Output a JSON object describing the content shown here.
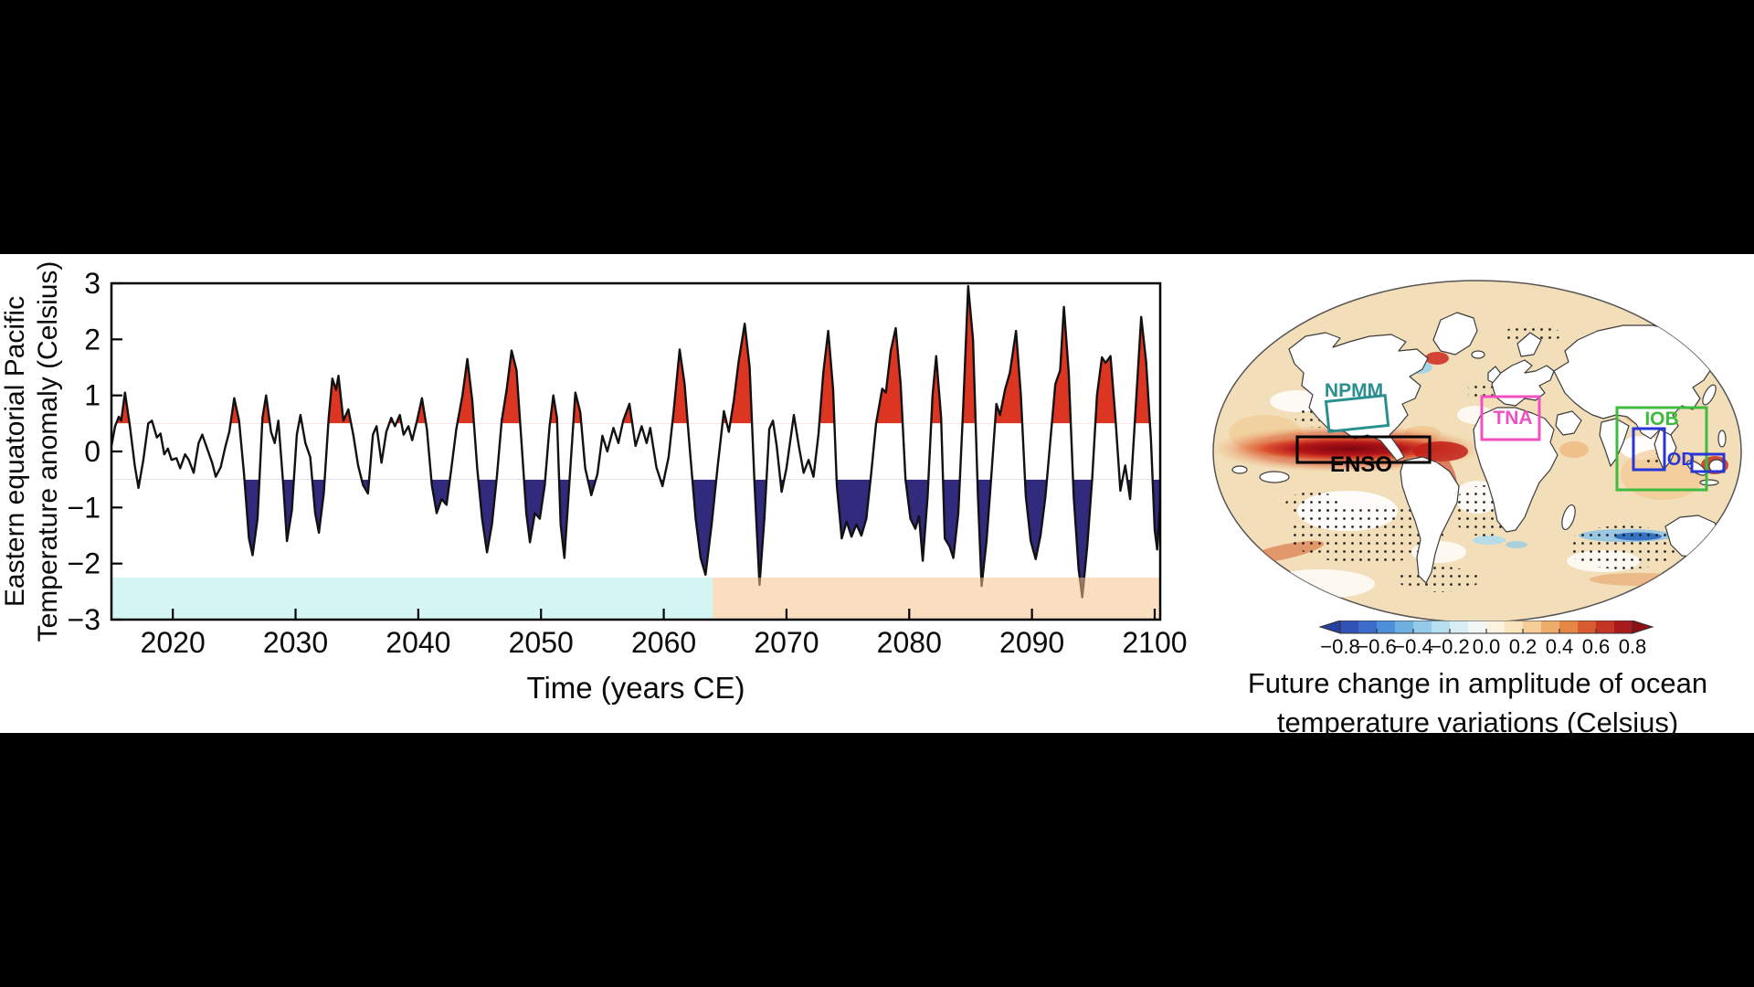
{
  "figure": {
    "background_color": "#000000",
    "panel_background": "#ffffff"
  },
  "chart_data": [
    {
      "type": "line",
      "title": "",
      "xlabel": "Time (years CE)",
      "ylabel_line1": "Eastern equatorial Pacific",
      "ylabel_line2": "Temperature anomaly (Celsius)",
      "xlim": [
        2015,
        2100.45
      ],
      "ylim": [
        -3,
        3
      ],
      "x_ticks": [
        2020,
        2030,
        2040,
        2050,
        2060,
        2070,
        2080,
        2090,
        2100
      ],
      "y_ticks": [
        3,
        2,
        1,
        0,
        -1,
        -2,
        -3
      ],
      "grid": false,
      "line_color": "#111111",
      "warm_threshold": 0.5,
      "cold_threshold": -0.5,
      "warm_fill": "#dc3522",
      "cold_fill": "#312a7d",
      "shading": [
        {
          "from": 2015,
          "to": 2064,
          "top": -2.25,
          "bottom": -3,
          "color": "#aeeeed"
        },
        {
          "from": 2064,
          "to": 2100.45,
          "top": -2.25,
          "bottom": -3,
          "color": "#f6c28c"
        }
      ],
      "series": [
        {
          "name": "Eastern equatorial Pacific temperature anomaly",
          "points": [
            [
              2015.0,
              0.1
            ],
            [
              2015.3,
              0.45
            ],
            [
              2015.6,
              0.62
            ],
            [
              2015.8,
              0.55
            ],
            [
              2016.1,
              1.05
            ],
            [
              2016.5,
              0.45
            ],
            [
              2016.9,
              -0.25
            ],
            [
              2017.2,
              -0.65
            ],
            [
              2017.6,
              -0.15
            ],
            [
              2018.0,
              0.5
            ],
            [
              2018.3,
              0.55
            ],
            [
              2018.7,
              0.25
            ],
            [
              2019.0,
              0.32
            ],
            [
              2019.3,
              -0.05
            ],
            [
              2019.6,
              0.05
            ],
            [
              2019.9,
              -0.15
            ],
            [
              2020.3,
              -0.12
            ],
            [
              2020.6,
              -0.3
            ],
            [
              2021.0,
              -0.05
            ],
            [
              2021.3,
              -0.15
            ],
            [
              2021.7,
              -0.38
            ],
            [
              2022.1,
              0.15
            ],
            [
              2022.4,
              0.3
            ],
            [
              2022.8,
              0.05
            ],
            [
              2023.2,
              -0.2
            ],
            [
              2023.5,
              -0.45
            ],
            [
              2023.9,
              -0.28
            ],
            [
              2024.3,
              0.1
            ],
            [
              2024.6,
              0.35
            ],
            [
              2025.0,
              0.95
            ],
            [
              2025.4,
              0.55
            ],
            [
              2025.8,
              -0.4
            ],
            [
              2026.2,
              -1.55
            ],
            [
              2026.5,
              -1.85
            ],
            [
              2026.9,
              -1.2
            ],
            [
              2027.3,
              0.6
            ],
            [
              2027.6,
              1.0
            ],
            [
              2028.0,
              0.35
            ],
            [
              2028.3,
              0.15
            ],
            [
              2028.6,
              0.55
            ],
            [
              2029.0,
              -0.6
            ],
            [
              2029.3,
              -1.6
            ],
            [
              2029.7,
              -1.05
            ],
            [
              2030.1,
              0.3
            ],
            [
              2030.4,
              0.65
            ],
            [
              2030.8,
              0.15
            ],
            [
              2031.2,
              -0.1
            ],
            [
              2031.6,
              -1.1
            ],
            [
              2031.9,
              -1.45
            ],
            [
              2032.3,
              -0.75
            ],
            [
              2032.7,
              0.6
            ],
            [
              2033.0,
              1.3
            ],
            [
              2033.3,
              1.1
            ],
            [
              2033.5,
              1.35
            ],
            [
              2033.9,
              0.55
            ],
            [
              2034.3,
              0.75
            ],
            [
              2034.7,
              0.3
            ],
            [
              2035.1,
              -0.25
            ],
            [
              2035.5,
              -0.6
            ],
            [
              2035.9,
              -0.75
            ],
            [
              2036.3,
              0.3
            ],
            [
              2036.6,
              0.45
            ],
            [
              2037.0,
              -0.2
            ],
            [
              2037.4,
              0.35
            ],
            [
              2037.8,
              0.6
            ],
            [
              2038.1,
              0.45
            ],
            [
              2038.5,
              0.65
            ],
            [
              2038.8,
              0.3
            ],
            [
              2039.2,
              0.45
            ],
            [
              2039.5,
              0.2
            ],
            [
              2039.9,
              0.55
            ],
            [
              2040.3,
              0.95
            ],
            [
              2040.7,
              0.4
            ],
            [
              2041.1,
              -0.6
            ],
            [
              2041.5,
              -1.1
            ],
            [
              2041.9,
              -0.85
            ],
            [
              2042.3,
              -0.95
            ],
            [
              2042.7,
              -0.3
            ],
            [
              2043.1,
              0.4
            ],
            [
              2043.6,
              1.0
            ],
            [
              2044.0,
              1.65
            ],
            [
              2044.4,
              0.9
            ],
            [
              2044.8,
              -0.3
            ],
            [
              2045.2,
              -1.2
            ],
            [
              2045.6,
              -1.8
            ],
            [
              2046.0,
              -1.3
            ],
            [
              2046.4,
              -0.45
            ],
            [
              2046.8,
              0.55
            ],
            [
              2047.2,
              1.1
            ],
            [
              2047.6,
              1.8
            ],
            [
              2048.0,
              1.45
            ],
            [
              2048.4,
              0.2
            ],
            [
              2048.8,
              -1.1
            ],
            [
              2049.1,
              -1.62
            ],
            [
              2049.5,
              -1.1
            ],
            [
              2049.9,
              -1.2
            ],
            [
              2050.3,
              -0.6
            ],
            [
              2050.7,
              0.45
            ],
            [
              2051.0,
              1.0
            ],
            [
              2051.3,
              0.6
            ],
            [
              2051.6,
              -1.3
            ],
            [
              2051.9,
              -1.9
            ],
            [
              2052.3,
              -0.6
            ],
            [
              2052.8,
              1.05
            ],
            [
              2053.2,
              0.7
            ],
            [
              2053.6,
              -0.3
            ],
            [
              2054.1,
              -0.78
            ],
            [
              2054.6,
              -0.4
            ],
            [
              2055.0,
              0.28
            ],
            [
              2055.4,
              0.0
            ],
            [
              2055.9,
              0.42
            ],
            [
              2056.3,
              0.15
            ],
            [
              2056.7,
              0.55
            ],
            [
              2057.2,
              0.85
            ],
            [
              2057.7,
              0.1
            ],
            [
              2058.2,
              0.45
            ],
            [
              2058.6,
              0.15
            ],
            [
              2058.9,
              0.42
            ],
            [
              2059.4,
              -0.28
            ],
            [
              2059.9,
              -0.62
            ],
            [
              2060.4,
              -0.1
            ],
            [
              2060.8,
              0.7
            ],
            [
              2061.3,
              1.82
            ],
            [
              2061.7,
              1.2
            ],
            [
              2062.1,
              0.1
            ],
            [
              2062.6,
              -1.2
            ],
            [
              2063.0,
              -1.9
            ],
            [
              2063.4,
              -2.2
            ],
            [
              2063.9,
              -1.3
            ],
            [
              2064.4,
              -0.25
            ],
            [
              2064.9,
              0.72
            ],
            [
              2065.3,
              0.35
            ],
            [
              2065.7,
              0.9
            ],
            [
              2066.1,
              1.6
            ],
            [
              2066.6,
              2.28
            ],
            [
              2067.0,
              1.5
            ],
            [
              2067.4,
              -0.6
            ],
            [
              2067.8,
              -2.38
            ],
            [
              2068.2,
              -1.2
            ],
            [
              2068.6,
              0.4
            ],
            [
              2068.9,
              0.55
            ],
            [
              2069.2,
              0.1
            ],
            [
              2069.6,
              -0.72
            ],
            [
              2070.0,
              -0.3
            ],
            [
              2070.6,
              0.65
            ],
            [
              2071.0,
              0.1
            ],
            [
              2071.4,
              -0.38
            ],
            [
              2071.8,
              -0.15
            ],
            [
              2072.2,
              -0.45
            ],
            [
              2072.6,
              0.3
            ],
            [
              2073.0,
              1.4
            ],
            [
              2073.4,
              2.15
            ],
            [
              2073.8,
              1.1
            ],
            [
              2074.1,
              -0.6
            ],
            [
              2074.5,
              -1.55
            ],
            [
              2074.9,
              -1.25
            ],
            [
              2075.3,
              -1.52
            ],
            [
              2075.7,
              -1.3
            ],
            [
              2076.1,
              -1.5
            ],
            [
              2076.5,
              -1.2
            ],
            [
              2076.9,
              -0.4
            ],
            [
              2077.3,
              0.5
            ],
            [
              2077.8,
              1.12
            ],
            [
              2078.1,
              1.05
            ],
            [
              2078.5,
              1.8
            ],
            [
              2078.9,
              2.2
            ],
            [
              2079.3,
              1.2
            ],
            [
              2079.7,
              -0.5
            ],
            [
              2080.1,
              -1.2
            ],
            [
              2080.5,
              -1.38
            ],
            [
              2080.8,
              -1.15
            ],
            [
              2081.1,
              -1.95
            ],
            [
              2081.5,
              -0.8
            ],
            [
              2081.9,
              1.0
            ],
            [
              2082.2,
              1.7
            ],
            [
              2082.6,
              0.6
            ],
            [
              2082.9,
              -1.55
            ],
            [
              2083.3,
              -1.7
            ],
            [
              2083.6,
              -1.9
            ],
            [
              2084.0,
              -1.1
            ],
            [
              2084.4,
              0.8
            ],
            [
              2084.8,
              2.95
            ],
            [
              2085.2,
              2.0
            ],
            [
              2085.6,
              -0.8
            ],
            [
              2085.9,
              -2.4
            ],
            [
              2086.3,
              -1.6
            ],
            [
              2086.7,
              -0.4
            ],
            [
              2087.1,
              0.85
            ],
            [
              2087.4,
              0.65
            ],
            [
              2087.8,
              1.1
            ],
            [
              2088.2,
              1.4
            ],
            [
              2088.7,
              2.15
            ],
            [
              2089.1,
              1.0
            ],
            [
              2089.5,
              -0.8
            ],
            [
              2089.9,
              -1.6
            ],
            [
              2090.3,
              -1.92
            ],
            [
              2090.7,
              -1.5
            ],
            [
              2091.1,
              -0.8
            ],
            [
              2091.5,
              0.2
            ],
            [
              2091.9,
              1.2
            ],
            [
              2092.3,
              1.45
            ],
            [
              2092.6,
              2.58
            ],
            [
              2093.0,
              1.4
            ],
            [
              2093.4,
              -0.8
            ],
            [
              2093.8,
              -2.1
            ],
            [
              2094.1,
              -2.6
            ],
            [
              2094.5,
              -1.7
            ],
            [
              2094.9,
              -0.5
            ],
            [
              2095.3,
              1.0
            ],
            [
              2095.7,
              1.68
            ],
            [
              2096.0,
              1.58
            ],
            [
              2096.4,
              1.7
            ],
            [
              2096.8,
              0.6
            ],
            [
              2097.2,
              -0.7
            ],
            [
              2097.6,
              -0.25
            ],
            [
              2098.0,
              -0.85
            ],
            [
              2098.4,
              0.6
            ],
            [
              2098.9,
              2.4
            ],
            [
              2099.3,
              1.6
            ],
            [
              2099.7,
              0.2
            ],
            [
              2100.0,
              -1.4
            ],
            [
              2100.2,
              -1.75
            ],
            [
              2100.45,
              -0.9
            ]
          ]
        }
      ]
    },
    {
      "type": "heatmap",
      "subtype": "world-map",
      "caption_line1": "Future change in amplitude of ocean",
      "caption_line2": "temperature variations (Celsius)",
      "colorbar": {
        "min": -0.8,
        "max": 0.8,
        "ticks": [
          -0.8,
          -0.6,
          -0.4,
          -0.2,
          0.0,
          0.2,
          0.4,
          0.6,
          0.8
        ],
        "segment_colors": [
          "#3352b8",
          "#3b6cc9",
          "#4f8ed8",
          "#70b0e0",
          "#93cbe8",
          "#b7dff0",
          "#d8edf6",
          "#f2f7f5",
          "#faf3e0",
          "#f9e4bd",
          "#f5cd96",
          "#efad6d",
          "#e68647",
          "#d95c30",
          "#c43524",
          "#a81b1c"
        ],
        "under_color": "#27409f",
        "over_color": "#8f0f15"
      },
      "regions": [
        {
          "id": "npmm",
          "label": "NPMM",
          "color": "#2a8f8f"
        },
        {
          "id": "enso",
          "label": "ENSO",
          "color": "#000000"
        },
        {
          "id": "tna",
          "label": "TNA",
          "color": "#f24fc3"
        },
        {
          "id": "iob",
          "label": "IOB",
          "color": "#3fbb3f"
        },
        {
          "id": "iod",
          "label": "IOD",
          "color": "#2a35d8"
        }
      ]
    }
  ]
}
